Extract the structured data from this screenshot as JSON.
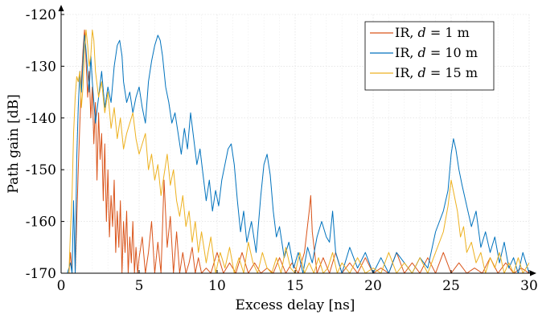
{
  "chart_data": {
    "type": "line",
    "xlabel": "Excess delay [ns]",
    "ylabel": "Path gain [dB]",
    "xlim": [
      0,
      30
    ],
    "ylim": [
      -170,
      -120
    ],
    "xticks": [
      0,
      5,
      10,
      15,
      20,
      25,
      30
    ],
    "yticks": [
      -170,
      -160,
      -150,
      -140,
      -130,
      -120
    ],
    "xtick_labels": [
      "0",
      "5",
      "10",
      "15",
      "20",
      "25",
      "30"
    ],
    "ytick_labels": [
      "-170",
      "-160",
      "-150",
      "-140",
      "-130",
      "-120"
    ],
    "grid": true,
    "legend_position": "top-right",
    "series": [
      {
        "name": "IR, d = 1 m",
        "legend_prefix": "IR, ",
        "legend_var": "d",
        "legend_eq": " = 1 m",
        "color": "#D95319",
        "x": [
          0.0,
          0.3,
          0.5,
          0.6,
          0.7,
          0.8,
          0.9,
          1.0,
          1.1,
          1.2,
          1.3,
          1.4,
          1.5,
          1.55,
          1.6,
          1.7,
          1.8,
          1.9,
          2.0,
          2.1,
          2.2,
          2.3,
          2.4,
          2.5,
          2.6,
          2.7,
          2.8,
          2.9,
          3.0,
          3.1,
          3.2,
          3.3,
          3.4,
          3.5,
          3.6,
          3.7,
          3.8,
          3.9,
          4.0,
          4.1,
          4.2,
          4.3,
          4.4,
          4.5,
          4.6,
          4.7,
          4.8,
          4.9,
          5.0,
          5.2,
          5.4,
          5.6,
          5.8,
          6.0,
          6.2,
          6.4,
          6.6,
          6.8,
          7.0,
          7.2,
          7.4,
          7.6,
          7.8,
          8.0,
          8.2,
          8.4,
          8.6,
          8.8,
          9.0,
          9.3,
          9.6,
          10.0,
          10.4,
          10.8,
          11.2,
          11.6,
          12.0,
          12.4,
          12.8,
          13.2,
          13.6,
          14.0,
          14.4,
          14.8,
          15.2,
          15.6,
          15.9,
          16.0,
          16.1,
          16.4,
          16.8,
          17.2,
          17.6,
          18.0,
          18.5,
          19.0,
          19.5,
          20.0,
          20.5,
          21.0,
          21.5,
          22.0,
          22.5,
          23.0,
          23.5,
          24.0,
          24.5,
          25.0,
          25.5,
          26.0,
          26.5,
          27.0,
          27.5,
          28.0,
          28.5,
          29.0,
          29.5,
          30.0
        ],
        "y": [
          -170,
          -170,
          -170,
          -166,
          -170,
          -170,
          -170,
          -160,
          -150,
          -141,
          -133,
          -127,
          -123,
          -125,
          -129,
          -136,
          -131,
          -140,
          -134,
          -145,
          -137,
          -152,
          -139,
          -148,
          -143,
          -156,
          -145,
          -160,
          -150,
          -163,
          -155,
          -161,
          -152,
          -166,
          -158,
          -165,
          -156,
          -170,
          -160,
          -166,
          -158,
          -170,
          -163,
          -168,
          -160,
          -170,
          -165,
          -170,
          -167,
          -163,
          -170,
          -166,
          -160,
          -170,
          -164,
          -170,
          -152,
          -165,
          -159,
          -170,
          -162,
          -170,
          -166,
          -170,
          -168,
          -165,
          -170,
          -167,
          -170,
          -169,
          -170,
          -166,
          -170,
          -168,
          -170,
          -166,
          -170,
          -168,
          -170,
          -169,
          -170,
          -167,
          -170,
          -168,
          -170,
          -166,
          -158,
          -155,
          -162,
          -170,
          -167,
          -170,
          -166,
          -170,
          -168,
          -170,
          -167,
          -170,
          -169,
          -170,
          -166,
          -170,
          -168,
          -170,
          -167,
          -170,
          -166,
          -170,
          -168,
          -170,
          -169,
          -170,
          -167,
          -170,
          -168,
          -170,
          -169,
          -170
        ]
      },
      {
        "name": "IR, d = 10 m",
        "legend_prefix": "IR, ",
        "legend_var": "d",
        "legend_eq": " = 10 m",
        "color": "#0072BD",
        "x": [
          0.0,
          0.4,
          0.6,
          0.7,
          0.8,
          0.9,
          1.0,
          1.1,
          1.2,
          1.3,
          1.4,
          1.5,
          1.6,
          1.7,
          1.8,
          1.9,
          2.0,
          2.2,
          2.4,
          2.6,
          2.8,
          3.0,
          3.2,
          3.4,
          3.6,
          3.75,
          3.9,
          4.0,
          4.2,
          4.4,
          4.6,
          4.8,
          5.0,
          5.2,
          5.4,
          5.6,
          5.8,
          6.0,
          6.2,
          6.35,
          6.5,
          6.7,
          6.9,
          7.1,
          7.3,
          7.5,
          7.7,
          7.9,
          8.1,
          8.3,
          8.5,
          8.7,
          8.9,
          9.1,
          9.3,
          9.5,
          9.7,
          9.9,
          10.1,
          10.3,
          10.5,
          10.7,
          10.9,
          11.1,
          11.3,
          11.5,
          11.7,
          11.9,
          12.2,
          12.5,
          12.8,
          13.0,
          13.2,
          13.4,
          13.6,
          13.8,
          14.0,
          14.3,
          14.6,
          14.9,
          15.2,
          15.5,
          15.8,
          16.1,
          16.4,
          16.7,
          17.0,
          17.2,
          17.4,
          17.6,
          18.0,
          18.5,
          19.0,
          19.5,
          20.0,
          20.5,
          21.0,
          21.5,
          22.0,
          22.5,
          23.0,
          23.5,
          24.0,
          24.5,
          24.8,
          25.0,
          25.15,
          25.3,
          25.5,
          25.7,
          26.0,
          26.3,
          26.6,
          26.9,
          27.2,
          27.5,
          27.8,
          28.1,
          28.4,
          28.7,
          29.0,
          29.3,
          29.6,
          30.0
        ],
        "y": [
          -170,
          -170,
          -168,
          -170,
          -156,
          -170,
          -148,
          -138,
          -131,
          -135,
          -129,
          -124,
          -127,
          -131,
          -135,
          -128,
          -133,
          -141,
          -136,
          -131,
          -138,
          -134,
          -137,
          -130,
          -126,
          -125,
          -128,
          -133,
          -137,
          -135,
          -139,
          -136,
          -134,
          -138,
          -141,
          -133,
          -129,
          -126,
          -124,
          -125,
          -128,
          -134,
          -137,
          -141,
          -139,
          -143,
          -147,
          -142,
          -146,
          -139,
          -144,
          -149,
          -146,
          -151,
          -156,
          -152,
          -158,
          -154,
          -157,
          -152,
          -149,
          -146,
          -145,
          -149,
          -156,
          -162,
          -158,
          -164,
          -160,
          -166,
          -155,
          -149,
          -147,
          -151,
          -158,
          -163,
          -161,
          -167,
          -164,
          -169,
          -166,
          -170,
          -165,
          -168,
          -163,
          -160,
          -163,
          -164,
          -158,
          -166,
          -170,
          -165,
          -169,
          -166,
          -170,
          -167,
          -170,
          -166,
          -168,
          -170,
          -167,
          -169,
          -162,
          -158,
          -154,
          -147,
          -144,
          -146,
          -150,
          -153,
          -157,
          -161,
          -158,
          -165,
          -162,
          -166,
          -163,
          -168,
          -164,
          -169,
          -167,
          -170,
          -166,
          -170
        ]
      },
      {
        "name": "IR, d = 15 m",
        "legend_prefix": "IR, ",
        "legend_var": "d",
        "legend_eq": " = 15 m",
        "color": "#EDB120",
        "x": [
          0.0,
          0.3,
          0.5,
          0.6,
          0.7,
          0.8,
          0.9,
          1.0,
          1.1,
          1.2,
          1.3,
          1.4,
          1.5,
          1.6,
          1.7,
          1.8,
          1.9,
          2.0,
          2.1,
          2.2,
          2.4,
          2.6,
          2.8,
          3.0,
          3.2,
          3.4,
          3.6,
          3.8,
          4.0,
          4.2,
          4.4,
          4.6,
          4.8,
          5.0,
          5.2,
          5.4,
          5.6,
          5.8,
          6.0,
          6.2,
          6.4,
          6.6,
          6.8,
          7.0,
          7.2,
          7.4,
          7.6,
          7.8,
          8.0,
          8.2,
          8.4,
          8.6,
          8.8,
          9.0,
          9.3,
          9.6,
          9.9,
          10.2,
          10.5,
          10.8,
          11.1,
          11.4,
          11.7,
          12.0,
          12.3,
          12.6,
          12.9,
          13.2,
          13.5,
          13.8,
          14.1,
          14.4,
          14.7,
          15.0,
          15.3,
          15.6,
          15.9,
          16.2,
          16.5,
          16.8,
          17.1,
          17.4,
          17.7,
          18.0,
          18.5,
          19.0,
          19.5,
          20.0,
          20.5,
          21.0,
          21.5,
          22.0,
          22.5,
          23.0,
          23.5,
          24.0,
          24.5,
          24.8,
          25.0,
          25.2,
          25.4,
          25.6,
          25.8,
          26.0,
          26.3,
          26.6,
          26.9,
          27.2,
          27.5,
          27.8,
          28.1,
          28.4,
          28.7,
          29.0,
          29.3,
          29.6,
          30.0
        ],
        "y": [
          -170,
          -170,
          -170,
          -162,
          -155,
          -143,
          -136,
          -132,
          -133,
          -131,
          -138,
          -134,
          -127,
          -123,
          -126,
          -130,
          -128,
          -123,
          -125,
          -131,
          -136,
          -133,
          -139,
          -135,
          -142,
          -138,
          -144,
          -140,
          -146,
          -143,
          -141,
          -139,
          -144,
          -147,
          -145,
          -143,
          -150,
          -147,
          -152,
          -149,
          -155,
          -151,
          -147,
          -153,
          -150,
          -156,
          -159,
          -155,
          -161,
          -158,
          -164,
          -160,
          -166,
          -162,
          -168,
          -163,
          -170,
          -166,
          -169,
          -165,
          -170,
          -167,
          -170,
          -164,
          -168,
          -170,
          -166,
          -169,
          -170,
          -167,
          -170,
          -165,
          -169,
          -170,
          -166,
          -170,
          -168,
          -170,
          -167,
          -170,
          -169,
          -166,
          -170,
          -168,
          -170,
          -167,
          -170,
          -169,
          -170,
          -166,
          -170,
          -168,
          -170,
          -167,
          -170,
          -166,
          -162,
          -157,
          -152,
          -155,
          -158,
          -163,
          -161,
          -166,
          -164,
          -168,
          -166,
          -170,
          -167,
          -169,
          -166,
          -170,
          -168,
          -170,
          -167,
          -170,
          -168
        ]
      }
    ]
  }
}
